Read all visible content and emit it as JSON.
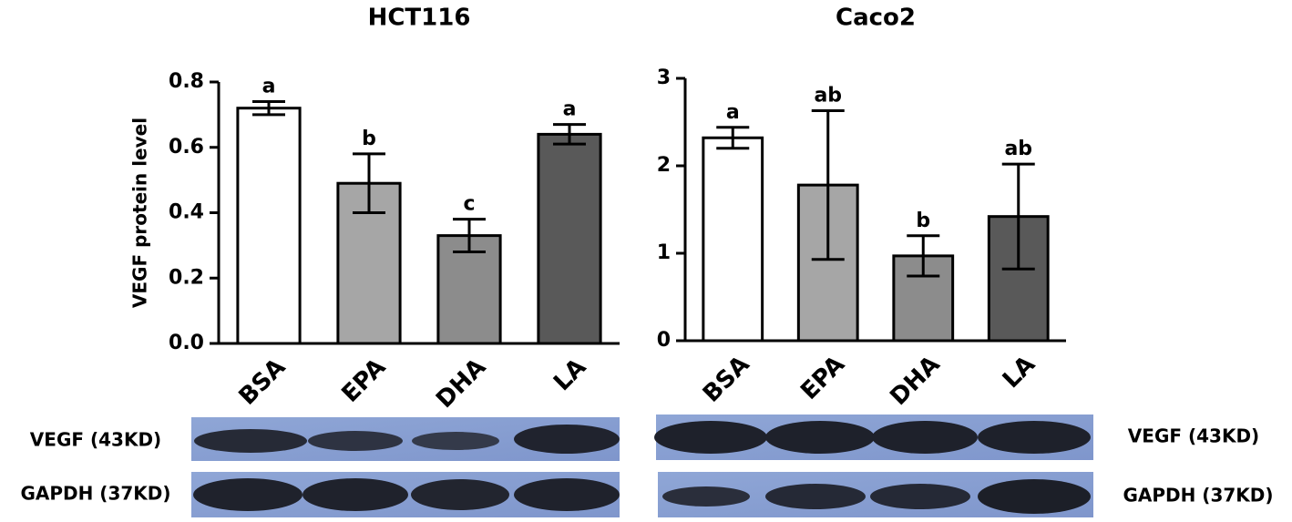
{
  "chart_data": [
    {
      "type": "bar",
      "title": "HCT116",
      "ylabel": "VEGF protein level",
      "categories": [
        "BSA",
        "EPA",
        "DHA",
        "LA"
      ],
      "values": [
        0.72,
        0.49,
        0.33,
        0.64
      ],
      "errors": [
        0.02,
        0.09,
        0.05,
        0.03
      ],
      "annotations": [
        "a",
        "b",
        "c",
        "a"
      ],
      "colors": [
        "#ffffff",
        "#a6a6a6",
        "#8c8c8c",
        "#595959"
      ],
      "ylim": [
        0,
        0.8
      ],
      "yticks": [
        {
          "value": 0,
          "label": "0.0"
        },
        0.2,
        0.4,
        0.6,
        0.8
      ]
    },
    {
      "type": "bar",
      "title": "Caco2",
      "categories": [
        "BSA",
        "EPA",
        "DHA",
        "LA"
      ],
      "values": [
        2.32,
        1.78,
        0.97,
        1.42
      ],
      "errors": [
        0.12,
        0.85,
        0.23,
        0.6
      ],
      "annotations": [
        "a",
        "ab",
        "b",
        "ab"
      ],
      "colors": [
        "#ffffff",
        "#a6a6a6",
        "#8c8c8c",
        "#595959"
      ],
      "ylim": [
        0,
        3
      ],
      "yticks": [
        0,
        1,
        2,
        3
      ]
    }
  ],
  "blots": {
    "left": [
      "VEGF (43KD)",
      "GAPDH (37KD)"
    ],
    "right": [
      "VEGF (43KD)",
      "GAPDH (37KD)"
    ]
  }
}
